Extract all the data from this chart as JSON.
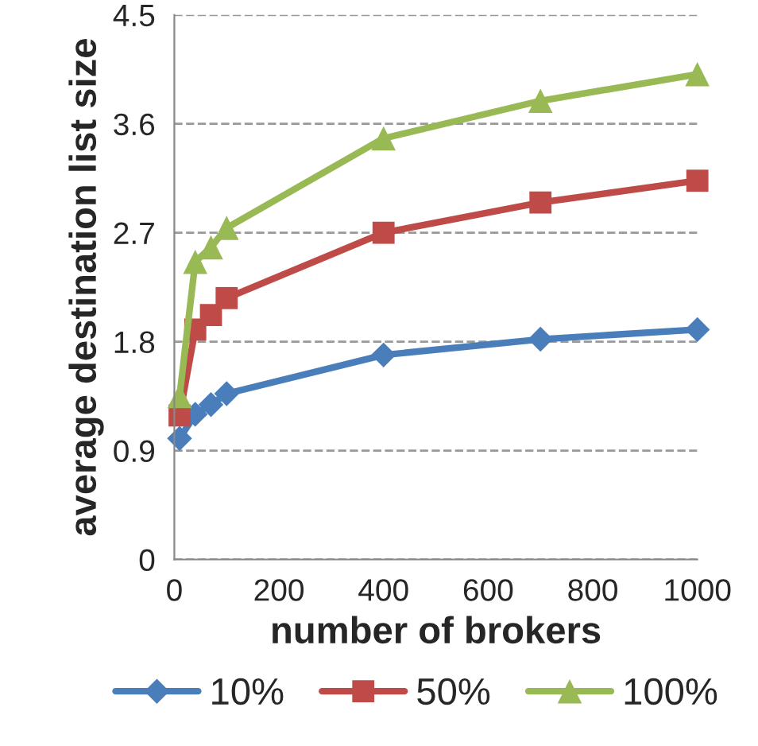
{
  "chart_data": {
    "type": "line",
    "xlabel": "number of brokers",
    "ylabel": "average destination list size",
    "x": [
      10,
      40,
      70,
      100,
      400,
      700,
      1000
    ],
    "series": [
      {
        "name": "10%",
        "color": "#4a7ebb",
        "marker": "diamond",
        "values": [
          1.0,
          1.2,
          1.28,
          1.37,
          1.69,
          1.82,
          1.9
        ]
      },
      {
        "name": "50%",
        "color": "#be4b48",
        "marker": "square",
        "values": [
          1.19,
          1.9,
          2.02,
          2.16,
          2.7,
          2.95,
          3.13
        ]
      },
      {
        "name": "100%",
        "color": "#98b954",
        "marker": "triangle",
        "values": [
          1.35,
          2.46,
          2.58,
          2.74,
          3.48,
          3.79,
          4.01
        ]
      }
    ],
    "xlim": [
      0,
      1000
    ],
    "xticks": [
      0,
      200,
      400,
      600,
      800,
      1000
    ],
    "ylim": [
      0,
      4.5
    ],
    "yticks": [
      0,
      0.9,
      1.8,
      2.7,
      3.6,
      4.5
    ],
    "grid": "y",
    "legend": "bottom"
  }
}
